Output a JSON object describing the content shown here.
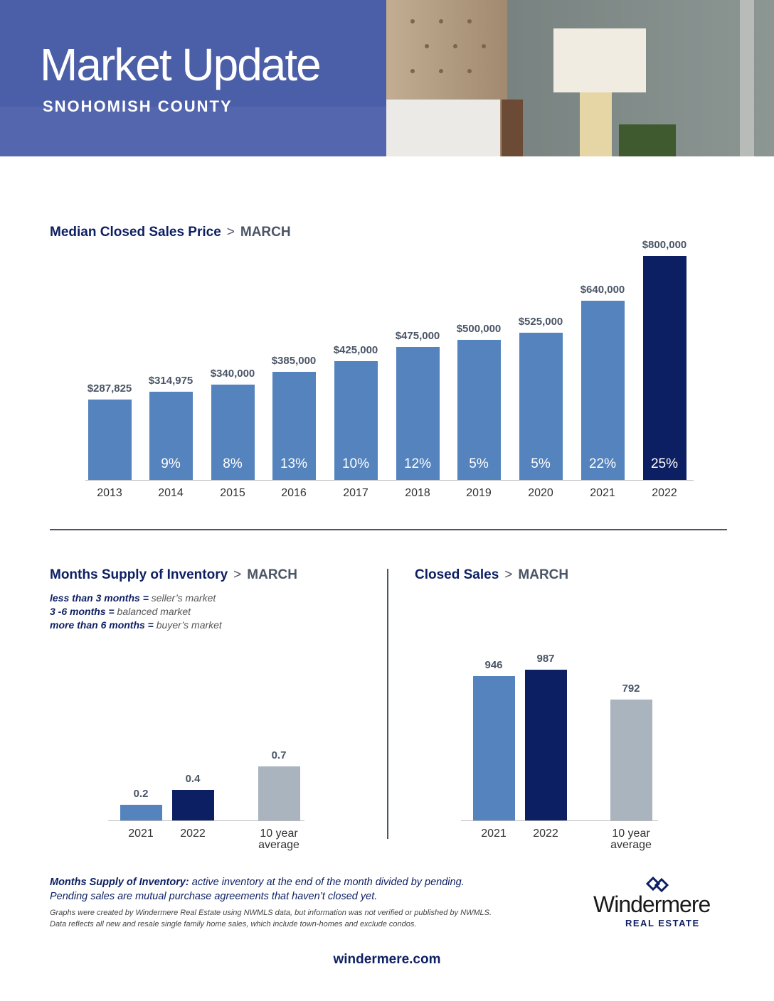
{
  "header": {
    "title": "Market Update",
    "subtitle": "SNOHOMISH COUNTY"
  },
  "chart_data": [
    {
      "type": "bar",
      "title": "Median Closed Sales Price",
      "separator": ">",
      "subtitle": "MARCH",
      "categories": [
        "2013",
        "2014",
        "2015",
        "2016",
        "2017",
        "2018",
        "2019",
        "2020",
        "2021",
        "2022"
      ],
      "values": [
        287825,
        314975,
        340000,
        385000,
        425000,
        475000,
        500000,
        525000,
        640000,
        800000
      ],
      "value_labels": [
        "$287,825",
        "$314,975",
        "$340,000",
        "$385,000",
        "$425,000",
        "$475,000",
        "$500,000",
        "$525,000",
        "$640,000",
        "$800,000"
      ],
      "changes": [
        null,
        9,
        8,
        13,
        10,
        12,
        5,
        5,
        22,
        25
      ],
      "change_labels": [
        null,
        "9%",
        "8%",
        "13%",
        "10%",
        "12%",
        "5%",
        "5%",
        "22%",
        "25%"
      ],
      "colors": [
        "#5483bd",
        "#5483bd",
        "#5483bd",
        "#5483bd",
        "#5483bd",
        "#5483bd",
        "#5483bd",
        "#5483bd",
        "#5483bd",
        "#0d1f63"
      ]
    },
    {
      "type": "bar",
      "title": "Months Supply of Inventory",
      "separator": ">",
      "subtitle": "MARCH",
      "notes": [
        {
          "term": "less than 3 months =",
          "meaning": "seller’s market"
        },
        {
          "term": "3 -6 months =",
          "meaning": "balanced market"
        },
        {
          "term": "more than 6 months =",
          "meaning": "buyer’s market"
        }
      ],
      "categories": [
        "2021",
        "2022",
        "10 year average"
      ],
      "values": [
        0.2,
        0.4,
        0.7
      ],
      "colors": [
        "#5483bd",
        "#0d1f63",
        "#a9b4bf"
      ]
    },
    {
      "type": "bar",
      "title": "Closed Sales",
      "separator": ">",
      "subtitle": "MARCH",
      "categories": [
        "2021",
        "2022",
        "10 year average"
      ],
      "values": [
        946,
        987,
        792
      ],
      "colors": [
        "#5483bd",
        "#0d1f63",
        "#a9b4bf"
      ]
    }
  ],
  "footer": {
    "definition_term": "Months Supply of Inventory:",
    "definition_text": "active inventory at the end of the month divided by pending.",
    "definition_line2": "Pending sales are mutual purchase agreements that haven’t closed yet.",
    "disclaimer1": "Graphs were created by Windermere Real Estate using NWMLS data, but information was not verified or published by NWMLS.",
    "disclaimer2": "Data reflects all new and resale single family home sales, which include town-homes and exclude condos.",
    "logo_name": "Windermere",
    "logo_sub": "REAL ESTATE",
    "url": "windermere.com"
  }
}
